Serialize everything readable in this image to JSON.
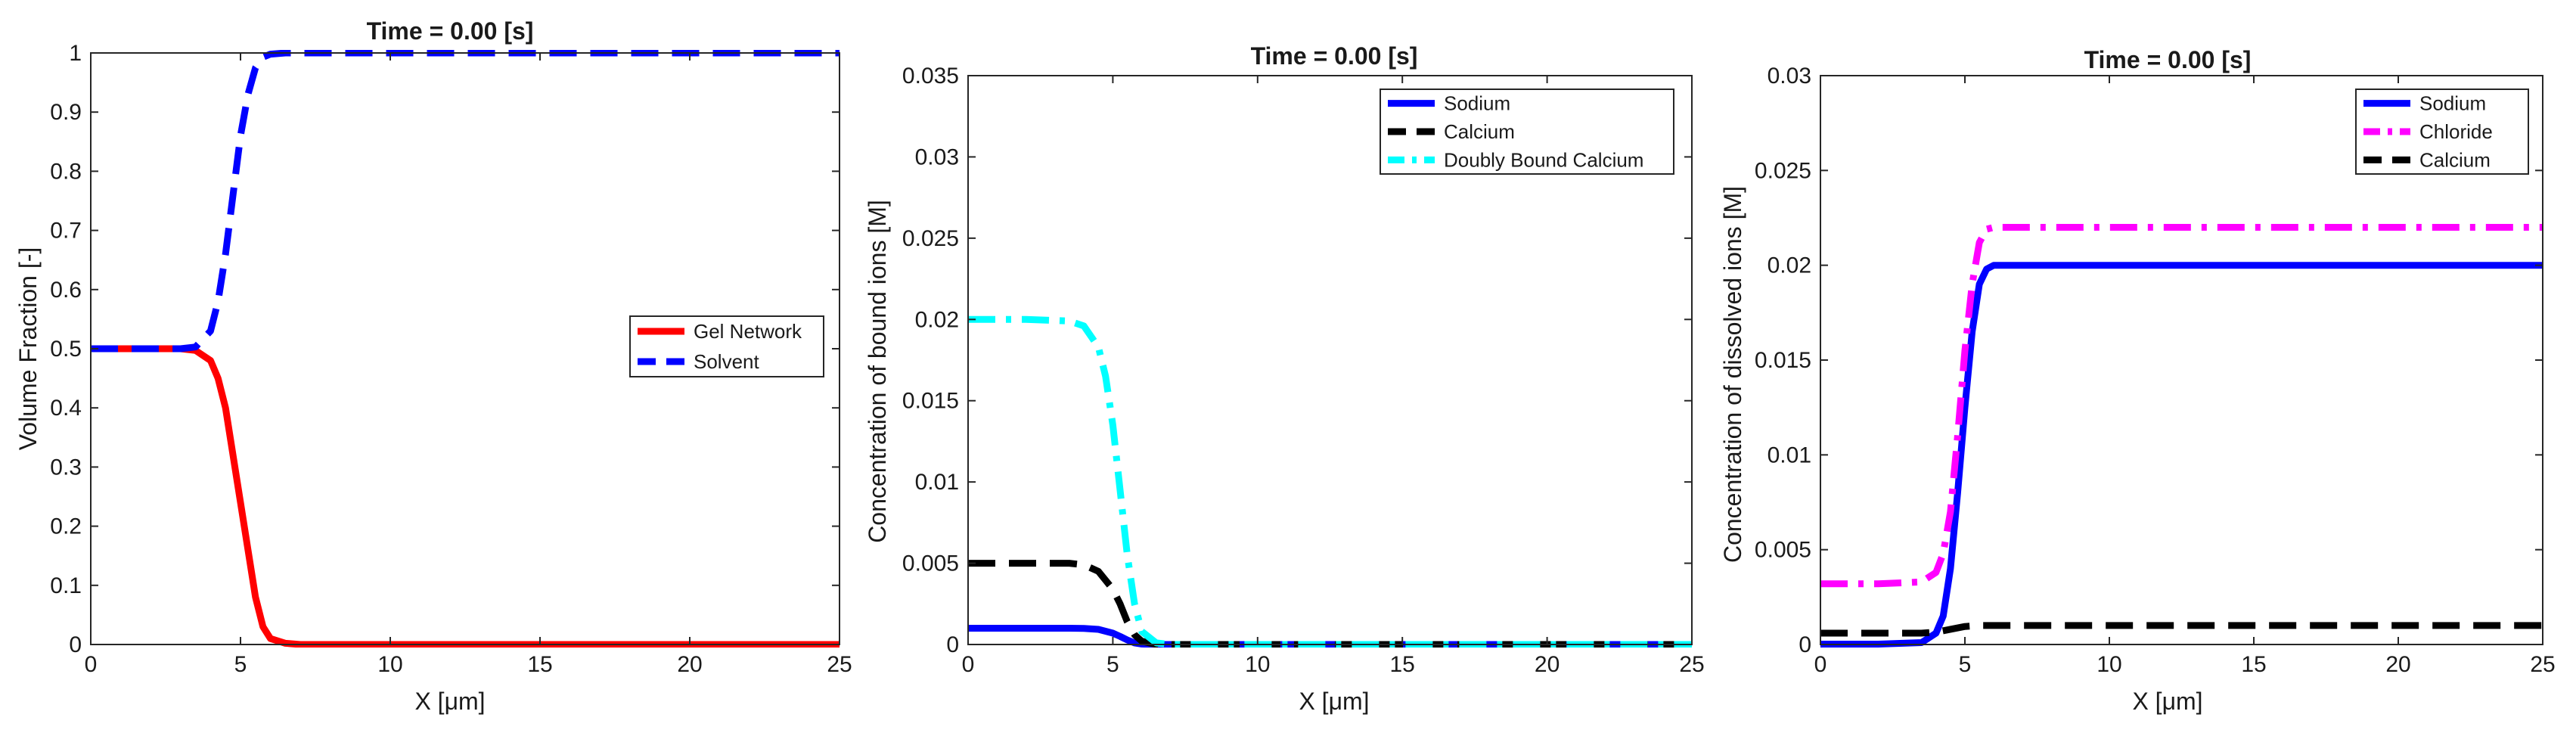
{
  "chart_data": [
    {
      "type": "line",
      "title": "Time = 0.00 [s]",
      "xlabel": "X [μm]",
      "ylabel": "Volume Fraction [-]",
      "xlim": [
        0,
        25
      ],
      "ylim": [
        0,
        1
      ],
      "xticks": [
        0,
        5,
        10,
        15,
        20,
        25
      ],
      "xtick_labels": [
        "0",
        "5",
        "10",
        "15",
        "20",
        "25"
      ],
      "yticks": [
        0,
        0.1,
        0.2,
        0.3,
        0.4,
        0.5,
        0.6,
        0.7,
        0.8,
        0.9,
        1
      ],
      "ytick_labels": [
        "0",
        "0.1",
        "0.2",
        "0.3",
        "0.4",
        "0.5",
        "0.6",
        "0.7",
        "0.8",
        "0.9",
        "1"
      ],
      "legend_position": "center-right",
      "grid": false,
      "series": [
        {
          "name": "Gel Network",
          "color": "#ff0000",
          "style": "solid",
          "x": [
            0,
            1,
            2,
            3,
            3.5,
            4,
            4.25,
            4.5,
            4.75,
            5,
            5.25,
            5.5,
            5.75,
            6,
            6.5,
            7,
            8,
            10,
            15,
            20,
            25
          ],
          "y": [
            0.5,
            0.5,
            0.5,
            0.5,
            0.497,
            0.48,
            0.45,
            0.4,
            0.32,
            0.24,
            0.16,
            0.08,
            0.03,
            0.01,
            0.002,
            0.0,
            0.0,
            0.0,
            0.0,
            0.0,
            0.0
          ]
        },
        {
          "name": "Solvent",
          "color": "#0000ff",
          "style": "dashed",
          "x": [
            0,
            1,
            2,
            3,
            3.5,
            4,
            4.25,
            4.5,
            4.75,
            5,
            5.25,
            5.5,
            5.75,
            6,
            6.5,
            7,
            8,
            10,
            15,
            20,
            25
          ],
          "y": [
            0.5,
            0.5,
            0.5,
            0.5,
            0.503,
            0.53,
            0.58,
            0.66,
            0.76,
            0.86,
            0.93,
            0.975,
            0.993,
            0.998,
            1.0,
            1.0,
            1.0,
            1.0,
            1.0,
            1.0,
            1.0
          ]
        }
      ]
    },
    {
      "type": "line",
      "title": "Time = 0.00 [s]",
      "xlabel": "X [μm]",
      "ylabel": "Concentration of bound ions [M]",
      "xlim": [
        0,
        25
      ],
      "ylim": [
        0,
        0.035
      ],
      "xticks": [
        0,
        5,
        10,
        15,
        20,
        25
      ],
      "xtick_labels": [
        "0",
        "5",
        "10",
        "15",
        "20",
        "25"
      ],
      "yticks": [
        0,
        0.005,
        0.01,
        0.015,
        0.02,
        0.025,
        0.03,
        0.035
      ],
      "ytick_labels": [
        "0",
        "0.005",
        "0.01",
        "0.015",
        "0.02",
        "0.025",
        "0.03",
        "0.035"
      ],
      "legend_position": "top-right",
      "grid": false,
      "series": [
        {
          "name": "Sodium",
          "color": "#0000ff",
          "style": "solid",
          "x": [
            0,
            2,
            3.5,
            4,
            4.5,
            5,
            5.25,
            5.5,
            5.75,
            6,
            6.5,
            7,
            10,
            15,
            20,
            25
          ],
          "y": [
            0.001,
            0.001,
            0.001,
            0.00099,
            0.00093,
            0.0007,
            0.0005,
            0.00028,
            0.0001,
            3e-05,
            0.0,
            0.0,
            0.0,
            0.0,
            0.0,
            0.0
          ]
        },
        {
          "name": "Calcium",
          "color": "#000000",
          "style": "dashed",
          "x": [
            0,
            2,
            3.5,
            4,
            4.5,
            5,
            5.25,
            5.5,
            5.75,
            6,
            6.5,
            7,
            10,
            15,
            20,
            25
          ],
          "y": [
            0.005,
            0.005,
            0.005,
            0.0049,
            0.0045,
            0.0034,
            0.0025,
            0.0014,
            0.0006,
            0.0002,
            0.0,
            0.0,
            0.0,
            0.0,
            0.0,
            0.0
          ]
        },
        {
          "name": "Doubly Bound Calcium",
          "color": "#00ffff",
          "style": "dashdot",
          "x": [
            0,
            2,
            3.5,
            4,
            4.5,
            4.75,
            5,
            5.25,
            5.5,
            5.75,
            6,
            6.5,
            7,
            10,
            15,
            20,
            25
          ],
          "y": [
            0.02,
            0.02,
            0.0199,
            0.0196,
            0.0183,
            0.0165,
            0.0135,
            0.0095,
            0.0055,
            0.0025,
            0.0008,
            0.0001,
            0.0,
            0.0,
            0.0,
            0.0,
            0.0
          ]
        }
      ]
    },
    {
      "type": "line",
      "title": "Time = 0.00 [s]",
      "xlabel": "X [μm]",
      "ylabel": "Concentration of dissolved ions [M]",
      "xlim": [
        0,
        25
      ],
      "ylim": [
        0,
        0.03
      ],
      "xticks": [
        0,
        5,
        10,
        15,
        20,
        25
      ],
      "xtick_labels": [
        "0",
        "5",
        "10",
        "15",
        "20",
        "25"
      ],
      "yticks": [
        0,
        0.005,
        0.01,
        0.015,
        0.02,
        0.025,
        0.03
      ],
      "ytick_labels": [
        "0",
        "0.005",
        "0.01",
        "0.015",
        "0.02",
        "0.025",
        "0.03"
      ],
      "legend_position": "top-right",
      "grid": false,
      "series": [
        {
          "name": "Sodium",
          "color": "#0000ff",
          "style": "solid",
          "x": [
            0,
            2,
            3.5,
            4,
            4.25,
            4.5,
            4.75,
            5,
            5.25,
            5.5,
            5.75,
            6,
            6.5,
            7,
            10,
            15,
            20,
            25
          ],
          "y": [
            2e-05,
            2e-05,
            0.0001,
            0.0006,
            0.0015,
            0.004,
            0.008,
            0.0125,
            0.0165,
            0.019,
            0.0198,
            0.02,
            0.02,
            0.02,
            0.02,
            0.02,
            0.02,
            0.02
          ]
        },
        {
          "name": "Chloride",
          "color": "#ff00ff",
          "style": "dashdot",
          "x": [
            0,
            2,
            3.5,
            4,
            4.25,
            4.5,
            4.75,
            5,
            5.25,
            5.5,
            5.75,
            6,
            6.5,
            7,
            10,
            15,
            20,
            25
          ],
          "y": [
            0.0032,
            0.0032,
            0.0033,
            0.0038,
            0.0048,
            0.007,
            0.011,
            0.0155,
            0.019,
            0.0212,
            0.0219,
            0.022,
            0.022,
            0.022,
            0.022,
            0.022,
            0.022,
            0.022
          ]
        },
        {
          "name": "Calcium",
          "color": "#000000",
          "style": "dashed",
          "x": [
            0,
            2,
            3.5,
            4,
            4.5,
            5,
            5.5,
            6,
            7,
            10,
            15,
            20,
            25
          ],
          "y": [
            0.0006,
            0.0006,
            0.0006,
            0.00065,
            0.0008,
            0.00095,
            0.001,
            0.001,
            0.001,
            0.001,
            0.001,
            0.001,
            0.001
          ]
        }
      ]
    }
  ]
}
